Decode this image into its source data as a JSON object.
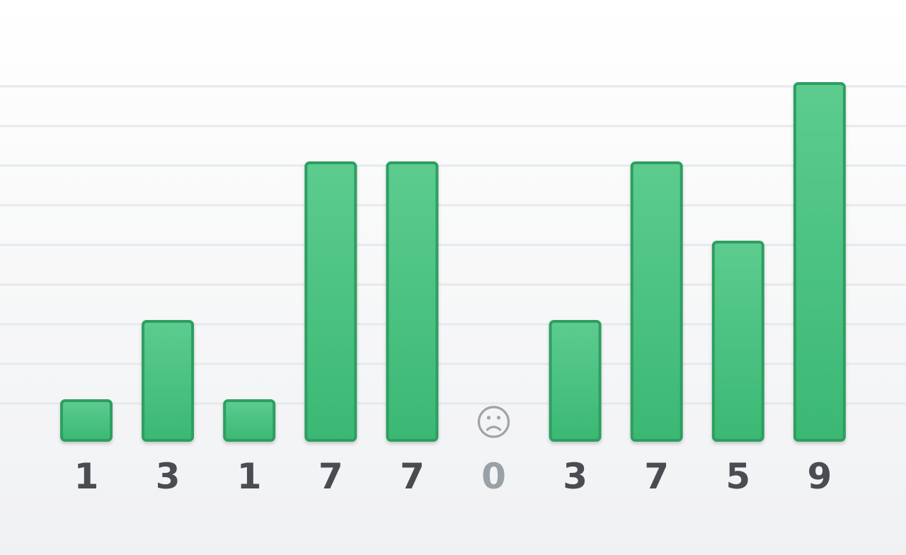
{
  "chart_data": {
    "type": "bar",
    "categories": [
      "",
      "",
      "",
      "",
      "",
      "",
      "",
      "",
      "",
      ""
    ],
    "values": [
      1,
      3,
      1,
      7,
      7,
      0,
      3,
      7,
      5,
      9
    ],
    "value_labels": [
      "1",
      "3",
      "1",
      "7",
      "7",
      "0",
      "3",
      "7",
      "5",
      "9"
    ],
    "ylim": [
      0,
      10
    ],
    "grid": true,
    "zero_marker_icon": "sad-face-icon",
    "title": "",
    "xlabel": "",
    "ylabel": ""
  },
  "colors": {
    "bar_fill_top": "#5ccc8e",
    "bar_fill_bottom": "#3bb874",
    "bar_stroke": "#2e9e62",
    "label": "#4a4c52",
    "zero_label": "#99a0a6",
    "grid": "#e8e9ec"
  }
}
